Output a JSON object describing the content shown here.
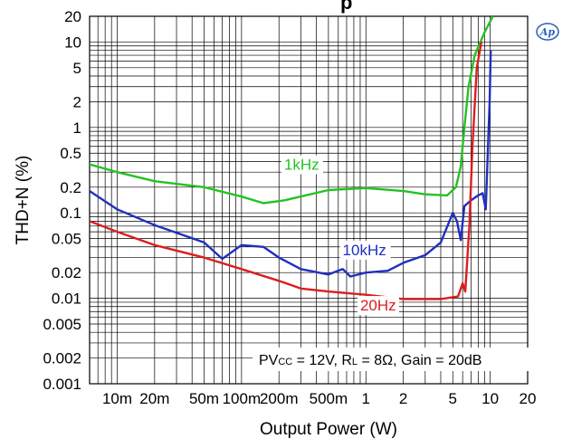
{
  "chart_data": {
    "type": "line",
    "title": "p",
    "xlabel": "Output Power (W)",
    "ylabel": "THD+N (%)",
    "xscale": "log",
    "yscale": "log",
    "xlim": [
      0.006,
      20
    ],
    "ylim": [
      0.001,
      20
    ],
    "grid": true,
    "x_ticks": [
      {
        "v": 0.01,
        "label": "10m"
      },
      {
        "v": 0.02,
        "label": "20m"
      },
      {
        "v": 0.05,
        "label": "50m"
      },
      {
        "v": 0.1,
        "label": "100m"
      },
      {
        "v": 0.2,
        "label": "200m"
      },
      {
        "v": 0.5,
        "label": "500m"
      },
      {
        "v": 1,
        "label": "1"
      },
      {
        "v": 2,
        "label": "2"
      },
      {
        "v": 5,
        "label": "5"
      },
      {
        "v": 10,
        "label": "10"
      },
      {
        "v": 20,
        "label": "20"
      }
    ],
    "y_ticks": [
      {
        "v": 20,
        "label": "20"
      },
      {
        "v": 10,
        "label": "10"
      },
      {
        "v": 5,
        "label": "5"
      },
      {
        "v": 2,
        "label": "2"
      },
      {
        "v": 1,
        "label": "1"
      },
      {
        "v": 0.5,
        "label": "0.5"
      },
      {
        "v": 0.2,
        "label": "0.2"
      },
      {
        "v": 0.1,
        "label": "0.1"
      },
      {
        "v": 0.05,
        "label": "0.05"
      },
      {
        "v": 0.02,
        "label": "0.02"
      },
      {
        "v": 0.01,
        "label": "0.01"
      },
      {
        "v": 0.005,
        "label": "0.005"
      },
      {
        "v": 0.002,
        "label": "0.002"
      },
      {
        "v": 0.001,
        "label": "0.001"
      }
    ],
    "series": [
      {
        "name": "1kHz",
        "color": "#22c322",
        "label_at": [
          0.22,
          0.32
        ],
        "points": [
          [
            0.006,
            0.37
          ],
          [
            0.01,
            0.3
          ],
          [
            0.02,
            0.235
          ],
          [
            0.05,
            0.2
          ],
          [
            0.1,
            0.155
          ],
          [
            0.15,
            0.13
          ],
          [
            0.22,
            0.14
          ],
          [
            0.5,
            0.185
          ],
          [
            1,
            0.195
          ],
          [
            2,
            0.18
          ],
          [
            3,
            0.165
          ],
          [
            4.5,
            0.16
          ],
          [
            5.3,
            0.2
          ],
          [
            5.8,
            0.35
          ],
          [
            6.2,
            1.0
          ],
          [
            6.7,
            3.0
          ],
          [
            7.5,
            7.0
          ],
          [
            9.0,
            13.0
          ],
          [
            10.5,
            20.0
          ]
        ]
      },
      {
        "name": "10kHz",
        "color": "#1f2fbf",
        "label_at": [
          0.65,
          0.032
        ],
        "points": [
          [
            0.006,
            0.18
          ],
          [
            0.01,
            0.11
          ],
          [
            0.02,
            0.072
          ],
          [
            0.05,
            0.045
          ],
          [
            0.07,
            0.029
          ],
          [
            0.1,
            0.042
          ],
          [
            0.15,
            0.04
          ],
          [
            0.2,
            0.03
          ],
          [
            0.3,
            0.022
          ],
          [
            0.5,
            0.019
          ],
          [
            0.65,
            0.022
          ],
          [
            0.75,
            0.018
          ],
          [
            1,
            0.02
          ],
          [
            1.5,
            0.021
          ],
          [
            2,
            0.026
          ],
          [
            3,
            0.032
          ],
          [
            4,
            0.045
          ],
          [
            5,
            0.1
          ],
          [
            5.4,
            0.08
          ],
          [
            5.8,
            0.048
          ],
          [
            6.2,
            0.12
          ],
          [
            7,
            0.14
          ],
          [
            8,
            0.16
          ],
          [
            8.7,
            0.17
          ],
          [
            9.2,
            0.11
          ],
          [
            9.6,
            0.6
          ],
          [
            9.9,
            2.0
          ],
          [
            10.1,
            8.0
          ]
        ]
      },
      {
        "name": "20Hz",
        "color": "#dc1e1e",
        "label_at": [
          0.9,
          0.0072
        ],
        "points": [
          [
            0.006,
            0.08
          ],
          [
            0.01,
            0.06
          ],
          [
            0.02,
            0.042
          ],
          [
            0.05,
            0.03
          ],
          [
            0.1,
            0.022
          ],
          [
            0.2,
            0.016
          ],
          [
            0.3,
            0.013
          ],
          [
            0.5,
            0.012
          ],
          [
            1,
            0.011
          ],
          [
            2,
            0.0098
          ],
          [
            4,
            0.0098
          ],
          [
            5.5,
            0.0105
          ],
          [
            6,
            0.015
          ],
          [
            6.3,
            0.012
          ],
          [
            6.8,
            0.07
          ],
          [
            7.2,
            0.6
          ],
          [
            7.8,
            5.0
          ],
          [
            8.5,
            10.0
          ]
        ]
      }
    ],
    "condition_text": {
      "p1": "PV",
      "s1": "CC",
      "p2": " = 12V, R",
      "s2": "L",
      "p3": " = 8Ω, Gain = 20dB"
    }
  },
  "logo": "Ap"
}
